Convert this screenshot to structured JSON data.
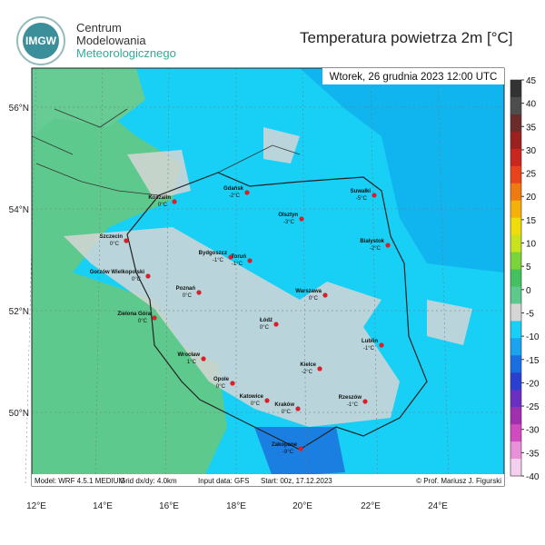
{
  "header": {
    "logo": "IMGW",
    "org_line1": "Centrum",
    "org_line2": "Modelowania",
    "org_line3": "Meteorologicznego",
    "title": "Temperatura powietrza 2m [°C]"
  },
  "map": {
    "valid_time": "Wtorek, 26 grudnia 2023 12:00 UTC",
    "lat_labels": [
      "56°N",
      "54°N",
      "52°N",
      "50°N"
    ],
    "lon_labels": [
      "12°E",
      "14°E",
      "16°E",
      "18°E",
      "20°E",
      "22°E",
      "24°E"
    ],
    "cities": [
      {
        "name": "Koszalin",
        "temp": "0°C"
      },
      {
        "name": "Gdańsk",
        "temp": "-2°C"
      },
      {
        "name": "Suwałki",
        "temp": "-5°C"
      },
      {
        "name": "Szczecin",
        "temp": "0°C"
      },
      {
        "name": "Olsztyn",
        "temp": "-3°C"
      },
      {
        "name": "Białystok",
        "temp": "-2°C"
      },
      {
        "name": "Bydgoszcz",
        "temp": "-1°C"
      },
      {
        "name": "Toruń",
        "temp": "-1°C"
      },
      {
        "name": "Gorzów Wielkopolski",
        "temp": "0°C"
      },
      {
        "name": "Poznań",
        "temp": "0°C"
      },
      {
        "name": "Warszawa",
        "temp": "0°C"
      },
      {
        "name": "Zielona Góra",
        "temp": "0°C"
      },
      {
        "name": "Łódź",
        "temp": "0°C"
      },
      {
        "name": "Lublin",
        "temp": "-1°C"
      },
      {
        "name": "Wrocław",
        "temp": "1°C"
      },
      {
        "name": "Opole",
        "temp": "0°C"
      },
      {
        "name": "Kielce",
        "temp": "-2°C"
      },
      {
        "name": "Katowice",
        "temp": "0°C"
      },
      {
        "name": "Rzeszów",
        "temp": "-1°C"
      },
      {
        "name": "Kraków",
        "temp": "0°C"
      },
      {
        "name": "Zakopane",
        "temp": "-9°C"
      }
    ]
  },
  "footer": {
    "model": "Model: WRF 4.5.1 MEDIUM",
    "grid": "Grid dx/dy: 4.0km",
    "input": "Input data: GFS",
    "start": "Start: 00z, 17.12.2023",
    "credit": "© Prof. Mariusz J. Figurski"
  },
  "colorbar": {
    "ticks": [
      45,
      40,
      35,
      30,
      25,
      20,
      15,
      10,
      5,
      0,
      -5,
      -10,
      -15,
      -20,
      -25,
      -30,
      -35,
      -40
    ]
  }
}
